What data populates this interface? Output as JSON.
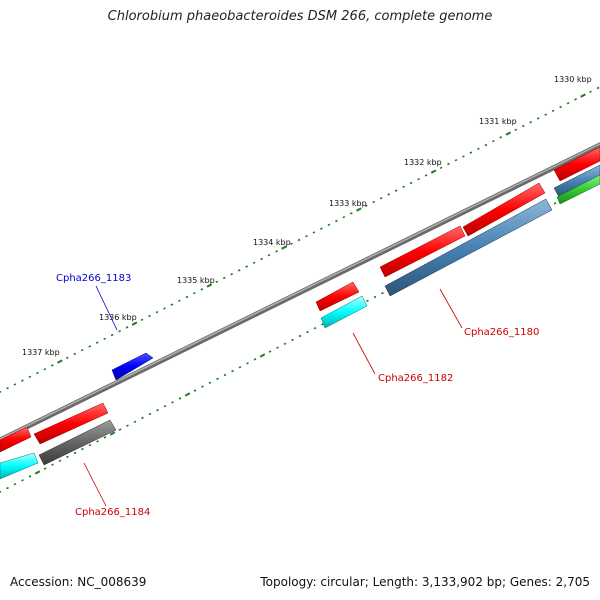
{
  "title": "Chlorobium phaeobacteroides DSM 266, complete genome",
  "footer": {
    "accession": "Accession: NC_008639",
    "stats": "Topology: circular; Length: 3,133,902 bp; Genes: 2,705"
  },
  "ruler": {
    "ticks": [
      "1330 kbp",
      "1331 kbp",
      "1332 kbp",
      "1333 kbp",
      "1334 kbp",
      "1335 kbp",
      "1336 kbp",
      "1337 kbp"
    ]
  },
  "colors": {
    "backbone": "#888888",
    "tick": "#1e7a1e",
    "cds_forward": "#ff0000",
    "cds_reverse": "#ff0000",
    "gene_blue": "#0000ff",
    "steelblue": "#4682b4",
    "cyan": "#00ffff",
    "gray": "#666666",
    "green": "#32cd32",
    "label_red": "#cc0000",
    "label_blue": "#0000cc"
  },
  "labels": {
    "gene_1180": "Cpha266_1180",
    "gene_1182": "Cpha266_1182",
    "gene_1183": "Cpha266_1183",
    "gene_1184": "Cpha266_1184"
  }
}
